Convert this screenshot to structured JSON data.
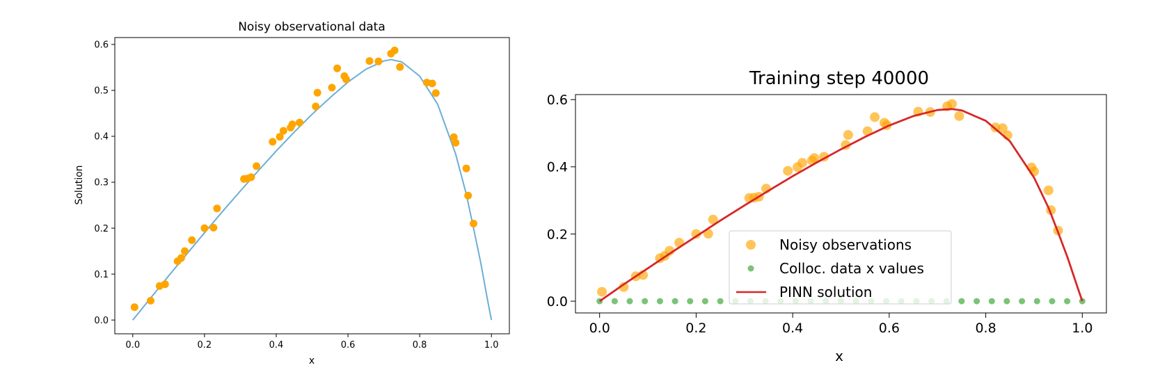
{
  "colors": {
    "left_points": "#ffa500",
    "left_curve": "#6baed6",
    "right_points": "#ffa500",
    "right_colloc": "#4daf4a",
    "right_curve": "#d62728"
  },
  "chart_data": [
    {
      "type": "scatter",
      "title": "Noisy observational data",
      "xlabel": "x",
      "ylabel": "Solution",
      "xlim": [
        -0.05,
        1.05
      ],
      "ylim": [
        -0.03,
        0.615
      ],
      "xticks": [
        "0.0",
        "0.2",
        "0.4",
        "0.6",
        "0.8",
        "1.0"
      ],
      "yticks": [
        "0.0",
        "0.1",
        "0.2",
        "0.3",
        "0.4",
        "0.5",
        "0.6"
      ],
      "grid": false,
      "series": [
        {
          "kind": "scatter",
          "x": [
            0.005,
            0.05,
            0.075,
            0.09,
            0.125,
            0.135,
            0.145,
            0.165,
            0.2,
            0.225,
            0.235,
            0.31,
            0.32,
            0.33,
            0.345,
            0.39,
            0.41,
            0.42,
            0.44,
            0.445,
            0.465,
            0.51,
            0.515,
            0.555,
            0.57,
            0.59,
            0.595,
            0.66,
            0.685,
            0.72,
            0.73,
            0.745,
            0.82,
            0.835,
            0.845,
            0.895,
            0.9,
            0.93,
            0.935,
            0.95
          ],
          "y": [
            0.028,
            0.042,
            0.074,
            0.078,
            0.128,
            0.135,
            0.15,
            0.174,
            0.2,
            0.201,
            0.243,
            0.307,
            0.308,
            0.311,
            0.335,
            0.388,
            0.399,
            0.412,
            0.419,
            0.426,
            0.43,
            0.465,
            0.495,
            0.506,
            0.548,
            0.531,
            0.524,
            0.564,
            0.563,
            0.58,
            0.587,
            0.551,
            0.517,
            0.515,
            0.494,
            0.398,
            0.386,
            0.33,
            0.271,
            0.21
          ]
        },
        {
          "kind": "line",
          "x": [
            0.0,
            0.05,
            0.1,
            0.15,
            0.2,
            0.25,
            0.3,
            0.35,
            0.4,
            0.45,
            0.5,
            0.55,
            0.6,
            0.65,
            0.7,
            0.72,
            0.75,
            0.8,
            0.85,
            0.9,
            0.93,
            0.95,
            0.97,
            0.99,
            1.0
          ],
          "y": [
            0.0,
            0.048,
            0.096,
            0.143,
            0.19,
            0.236,
            0.281,
            0.325,
            0.368,
            0.409,
            0.448,
            0.484,
            0.518,
            0.546,
            0.564,
            0.567,
            0.562,
            0.531,
            0.47,
            0.362,
            0.274,
            0.2,
            0.125,
            0.04,
            0.0
          ]
        }
      ]
    },
    {
      "type": "scatter",
      "title": "Training step 40000",
      "xlabel": "x",
      "ylabel": "",
      "xlim": [
        -0.05,
        1.05
      ],
      "ylim": [
        -0.035,
        0.615
      ],
      "xticks": [
        "0.0",
        "0.2",
        "0.4",
        "0.6",
        "0.8",
        "1.0"
      ],
      "yticks": [
        "0.0",
        "0.2",
        "0.4",
        "0.6"
      ],
      "grid": false,
      "legend_position": "lower-center",
      "series": [
        {
          "name": "Noisy observations",
          "kind": "scatter",
          "x": [
            0.005,
            0.05,
            0.075,
            0.09,
            0.125,
            0.135,
            0.145,
            0.165,
            0.2,
            0.225,
            0.235,
            0.31,
            0.32,
            0.33,
            0.345,
            0.39,
            0.41,
            0.42,
            0.44,
            0.445,
            0.465,
            0.51,
            0.515,
            0.555,
            0.57,
            0.59,
            0.595,
            0.66,
            0.685,
            0.72,
            0.73,
            0.745,
            0.82,
            0.835,
            0.845,
            0.895,
            0.9,
            0.93,
            0.935,
            0.95
          ],
          "y": [
            0.028,
            0.042,
            0.074,
            0.078,
            0.128,
            0.135,
            0.15,
            0.174,
            0.2,
            0.201,
            0.243,
            0.307,
            0.308,
            0.311,
            0.335,
            0.388,
            0.399,
            0.412,
            0.419,
            0.426,
            0.43,
            0.465,
            0.495,
            0.506,
            0.548,
            0.531,
            0.524,
            0.564,
            0.563,
            0.58,
            0.587,
            0.551,
            0.517,
            0.515,
            0.494,
            0.398,
            0.386,
            0.33,
            0.271,
            0.21
          ]
        },
        {
          "name": "Colloc. data x values",
          "kind": "scatter",
          "x": [
            0.0,
            0.03125,
            0.0625,
            0.09375,
            0.125,
            0.15625,
            0.1875,
            0.21875,
            0.25,
            0.28125,
            0.3125,
            0.34375,
            0.375,
            0.40625,
            0.4375,
            0.46875,
            0.5,
            0.53125,
            0.5625,
            0.59375,
            0.625,
            0.65625,
            0.6875,
            0.71875,
            0.75,
            0.78125,
            0.8125,
            0.84375,
            0.875,
            0.90625,
            0.9375,
            0.96875,
            1.0
          ],
          "y": [
            0,
            0,
            0,
            0,
            0,
            0,
            0,
            0,
            0,
            0,
            0,
            0,
            0,
            0,
            0,
            0,
            0,
            0,
            0,
            0,
            0,
            0,
            0,
            0,
            0,
            0,
            0,
            0,
            0,
            0,
            0,
            0,
            0
          ]
        },
        {
          "name": "PINN solution",
          "kind": "line",
          "x": [
            0.0,
            0.05,
            0.1,
            0.15,
            0.2,
            0.25,
            0.3,
            0.35,
            0.4,
            0.45,
            0.5,
            0.55,
            0.6,
            0.65,
            0.7,
            0.73,
            0.75,
            0.8,
            0.85,
            0.9,
            0.93,
            0.95,
            0.97,
            0.99,
            1.0
          ],
          "y": [
            0.0,
            0.05,
            0.098,
            0.146,
            0.193,
            0.24,
            0.285,
            0.329,
            0.372,
            0.413,
            0.452,
            0.489,
            0.523,
            0.551,
            0.569,
            0.572,
            0.568,
            0.537,
            0.476,
            0.368,
            0.278,
            0.205,
            0.128,
            0.042,
            0.0
          ]
        }
      ]
    }
  ]
}
